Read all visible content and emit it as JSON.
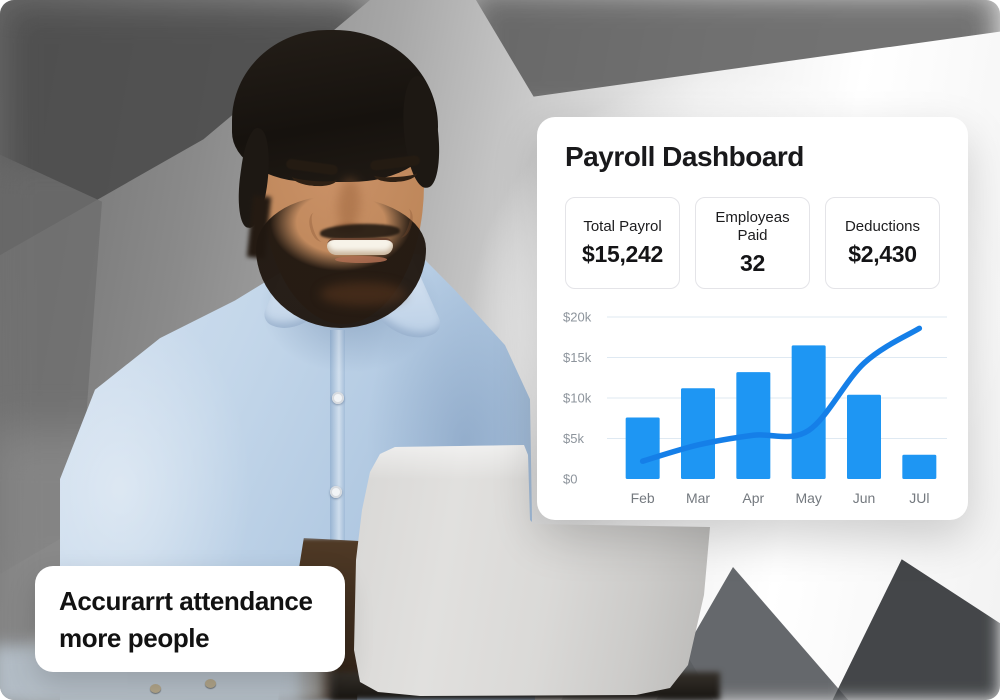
{
  "dashboard": {
    "title": "Payroll Dashboard",
    "stats": [
      {
        "label": "Total Payrol",
        "value": "$15,242"
      },
      {
        "label": "Employeas Paid",
        "value": "32"
      },
      {
        "label": "Deductions",
        "value": "$2,430"
      }
    ]
  },
  "caption": {
    "line1": "Accurarrt attendance",
    "line2": "more people"
  },
  "chart_data": {
    "type": "bar",
    "title": "",
    "xlabel": "",
    "ylabel": "",
    "categories": [
      "Feb",
      "Mar",
      "Apr",
      "May",
      "Jun",
      "JUl"
    ],
    "series": [
      {
        "name": "monthly-payroll-bars",
        "type": "bar",
        "values": [
          7600,
          11200,
          13200,
          16500,
          10400,
          3000
        ]
      },
      {
        "name": "payroll-trend-line",
        "type": "line",
        "values": [
          2200,
          4200,
          5400,
          6000,
          14300,
          18600
        ]
      }
    ],
    "ytick_labels": [
      "$0",
      "$5k",
      "$10k",
      "$15k",
      "$20k"
    ],
    "ytick_values": [
      0,
      5000,
      10000,
      15000,
      20000
    ],
    "ylim": [
      0,
      20000
    ],
    "grid": true,
    "legend_position": "none",
    "bar_color": "#1e96f3",
    "line_color": "#157fe8",
    "grid_color": "#dfe9f2",
    "axis_label_color": "#8d949c",
    "tick_label_color": "#74797f"
  }
}
